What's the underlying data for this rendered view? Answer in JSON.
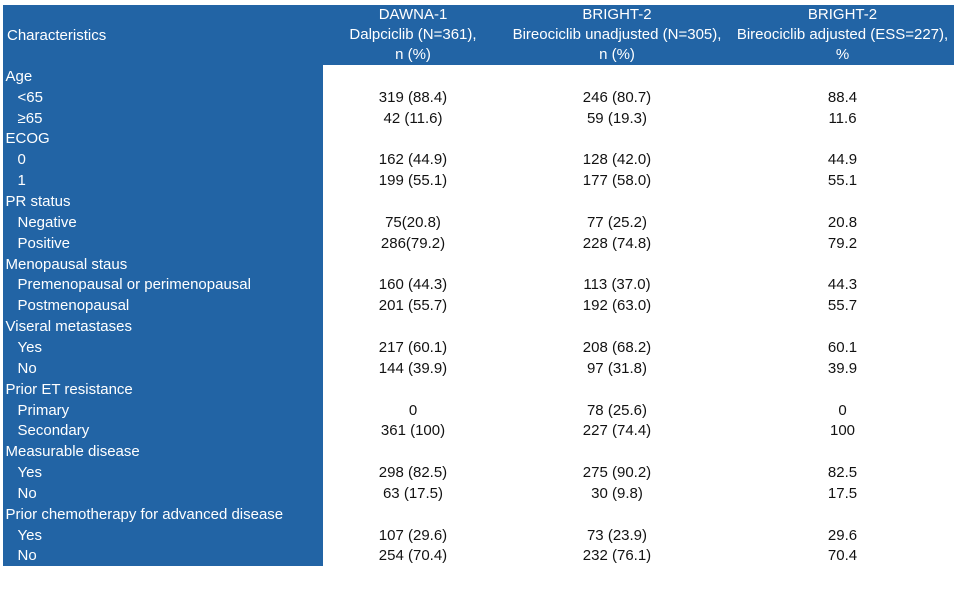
{
  "colors": {
    "table_blue": "#2264A5",
    "header_text": "#FFFFFF",
    "data_text": "#121212",
    "page_background": "#FFFFFF"
  },
  "table": {
    "corner_label": "Characteristics",
    "columns": [
      {
        "lines": [
          "DAWNA-1",
          "Dalpciclib (N=361),",
          "n (%)"
        ]
      },
      {
        "lines": [
          "BRIGHT-2",
          "Bireociclib unadjusted (N=305),",
          "n (%)"
        ]
      },
      {
        "lines": [
          "BRIGHT-2",
          "Bireociclib adjusted (ESS=227),",
          "%"
        ]
      }
    ],
    "rows": [
      {
        "label": "Age",
        "group": true,
        "values": [
          "",
          "",
          ""
        ]
      },
      {
        "label": "<65",
        "group": false,
        "values": [
          "319 (88.4)",
          "246 (80.7)",
          "88.4"
        ]
      },
      {
        "label": "≥65",
        "group": false,
        "values": [
          "42 (11.6)",
          "59 (19.3)",
          "11.6"
        ]
      },
      {
        "label": "ECOG",
        "group": true,
        "values": [
          "",
          "",
          ""
        ]
      },
      {
        "label": "0",
        "group": false,
        "values": [
          "162 (44.9)",
          "128 (42.0)",
          "44.9"
        ]
      },
      {
        "label": "1",
        "group": false,
        "values": [
          "199 (55.1)",
          "177 (58.0)",
          "55.1"
        ]
      },
      {
        "label": "PR status",
        "group": true,
        "values": [
          "",
          "",
          ""
        ]
      },
      {
        "label": "Negative",
        "group": false,
        "values": [
          "75(20.8)",
          "77 (25.2)",
          "20.8"
        ]
      },
      {
        "label": "Positive",
        "group": false,
        "values": [
          "286(79.2)",
          "228 (74.8)",
          "79.2"
        ]
      },
      {
        "label": "Menopausal staus",
        "group": true,
        "values": [
          "",
          "",
          ""
        ]
      },
      {
        "label": "Premenopausal or perimenopausal",
        "group": false,
        "values": [
          "160 (44.3)",
          "113 (37.0)",
          "44.3"
        ]
      },
      {
        "label": "Postmenopausal",
        "group": false,
        "values": [
          "201 (55.7)",
          "192 (63.0)",
          "55.7"
        ]
      },
      {
        "label": "Viseral metastases",
        "group": true,
        "values": [
          "",
          "",
          ""
        ]
      },
      {
        "label": "Yes",
        "group": false,
        "values": [
          "217 (60.1)",
          "208 (68.2)",
          "60.1"
        ]
      },
      {
        "label": "No",
        "group": false,
        "values": [
          "144 (39.9)",
          "97 (31.8)",
          "39.9"
        ]
      },
      {
        "label": "Prior ET resistance",
        "group": true,
        "values": [
          "",
          "",
          ""
        ]
      },
      {
        "label": "Primary",
        "group": false,
        "values": [
          "0",
          "78 (25.6)",
          "0"
        ]
      },
      {
        "label": "Secondary",
        "group": false,
        "values": [
          "361 (100)",
          "227 (74.4)",
          "100"
        ]
      },
      {
        "label": "Measurable disease",
        "group": true,
        "values": [
          "",
          "",
          ""
        ]
      },
      {
        "label": "Yes",
        "group": false,
        "values": [
          "298 (82.5)",
          "275 (90.2)",
          "82.5"
        ]
      },
      {
        "label": "No",
        "group": false,
        "values": [
          "63 (17.5)",
          "30 (9.8)",
          "17.5"
        ]
      },
      {
        "label": "Prior chemotherapy for advanced disease",
        "group": true,
        "values": [
          "",
          "",
          ""
        ]
      },
      {
        "label": "Yes",
        "group": false,
        "values": [
          "107 (29.6)",
          "73 (23.9)",
          "29.6"
        ]
      },
      {
        "label": "No",
        "group": false,
        "values": [
          "254 (70.4)",
          "232 (76.1)",
          "70.4"
        ]
      }
    ]
  }
}
